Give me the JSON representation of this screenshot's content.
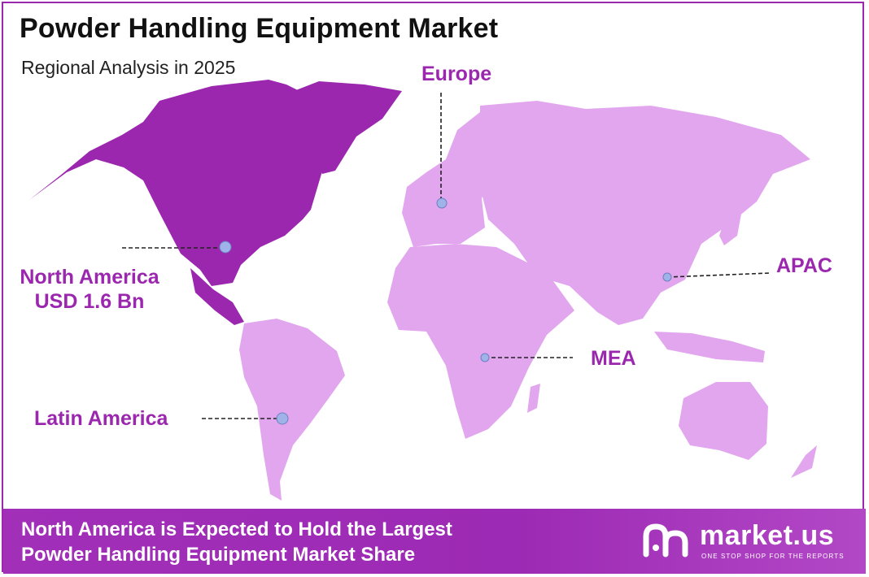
{
  "title": "Powder Handling Equipment Market",
  "subtitle": "Regional Analysis in 2025",
  "regions": {
    "europe": {
      "label": "Europe"
    },
    "north_america": {
      "label": "North America",
      "value": "USD 1.6 Bn"
    },
    "apac": {
      "label": "APAC"
    },
    "mea": {
      "label": "MEA"
    },
    "latin_america": {
      "label": "Latin America"
    }
  },
  "colors": {
    "highlight_region": "#9b27af",
    "other_regions": "#e2a6ee",
    "marker": "#9fb3e8",
    "label": "#9b27af"
  },
  "footer": {
    "line1": "North America is Expected to Hold the Largest",
    "line2": "Powder Handling Equipment Market Share"
  },
  "brand": {
    "name": "market.us",
    "tagline": "ONE STOP SHOP FOR THE REPORTS"
  }
}
